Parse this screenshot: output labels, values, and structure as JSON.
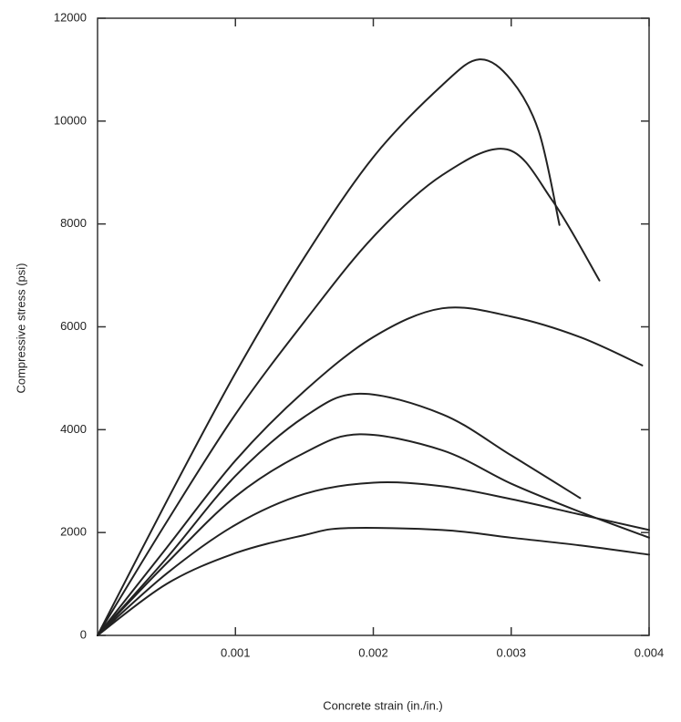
{
  "chart_data": {
    "type": "line",
    "x_label": "Concrete strain (in./in.)",
    "y_label": "Compressive stress (psi)",
    "xlim": [
      0,
      0.004
    ],
    "ylim": [
      0,
      12000
    ],
    "xticks": [
      0.001,
      0.002,
      0.003,
      0.004
    ],
    "yticks": [
      0,
      2000,
      4000,
      6000,
      8000,
      10000,
      12000
    ],
    "grid": false,
    "series": [
      {
        "color": "#222222",
        "x": [
          0,
          0.0005,
          0.001,
          0.0015,
          0.002,
          0.0025,
          0.00277,
          0.003,
          0.0032,
          0.00335
        ],
        "values": [
          0,
          2600,
          5100,
          7350,
          9300,
          10700,
          11200,
          10800,
          9800,
          7980
        ]
      },
      {
        "color": "#222222",
        "x": [
          0,
          0.0005,
          0.001,
          0.0015,
          0.002,
          0.0025,
          0.00297,
          0.0033,
          0.00364
        ],
        "values": [
          0,
          2200,
          4300,
          6100,
          7750,
          8950,
          9450,
          8450,
          6900
        ]
      },
      {
        "color": "#222222",
        "x": [
          0,
          0.0005,
          0.001,
          0.0015,
          0.002,
          0.0025,
          0.003,
          0.0035,
          0.00395
        ],
        "values": [
          0,
          1700,
          3400,
          4750,
          5800,
          6360,
          6200,
          5800,
          5250
        ]
      },
      {
        "color": "#222222",
        "x": [
          0,
          0.0005,
          0.001,
          0.0015,
          0.0019,
          0.0025,
          0.003,
          0.0035
        ],
        "values": [
          0,
          1500,
          3100,
          4250,
          4700,
          4300,
          3500,
          2670
        ]
      },
      {
        "color": "#222222",
        "x": [
          0,
          0.0005,
          0.001,
          0.0015,
          0.0019,
          0.0025,
          0.003,
          0.0035,
          0.004
        ],
        "values": [
          0,
          1400,
          2700,
          3550,
          3910,
          3600,
          2950,
          2400,
          1900
        ]
      },
      {
        "color": "#222222",
        "x": [
          0,
          0.0005,
          0.001,
          0.0015,
          0.002,
          0.0025,
          0.003,
          0.0035,
          0.004
        ],
        "values": [
          0,
          1200,
          2150,
          2750,
          2970,
          2900,
          2650,
          2350,
          2050
        ]
      },
      {
        "color": "#222222",
        "x": [
          0,
          0.0005,
          0.001,
          0.0015,
          0.0018,
          0.0025,
          0.003,
          0.0035,
          0.004
        ],
        "values": [
          0,
          1000,
          1600,
          1950,
          2085,
          2050,
          1900,
          1750,
          1570
        ]
      }
    ]
  }
}
